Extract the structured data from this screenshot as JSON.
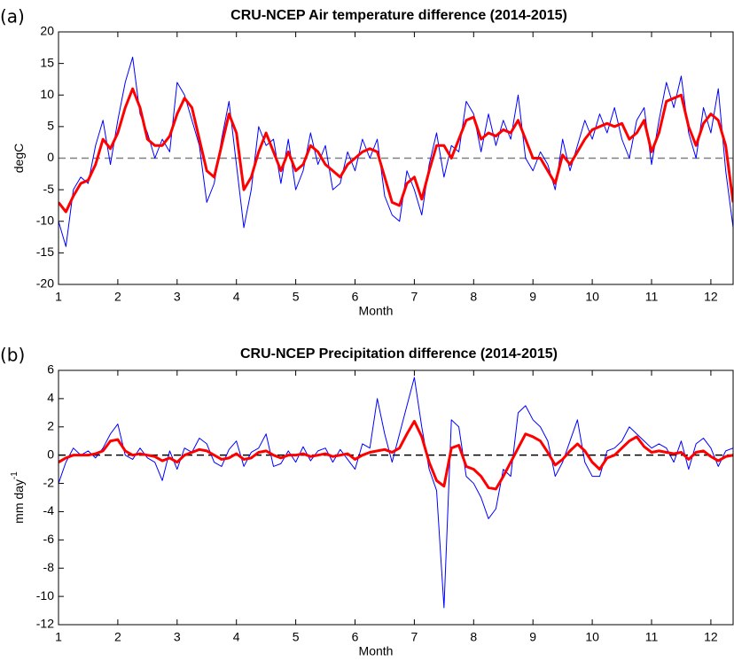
{
  "chart_data": [
    {
      "type": "line",
      "panel_label": "(a)",
      "title": "CRU-NCEP Air temperature difference (2014-2015)",
      "xlabel": "Month",
      "ylabel": "degC",
      "xlim": [
        1,
        12.375
      ],
      "xticks": [
        1,
        2,
        3,
        4,
        5,
        6,
        7,
        8,
        9,
        10,
        11,
        12
      ],
      "ylim": [
        -20,
        20
      ],
      "yticks": [
        -20,
        -15,
        -10,
        -5,
        0,
        5,
        10,
        15,
        20
      ],
      "zero_line": true,
      "zero_line_color": "#808080",
      "x": [
        1,
        1.125,
        1.25,
        1.375,
        1.5,
        1.625,
        1.75,
        1.875,
        2,
        2.125,
        2.25,
        2.375,
        2.5,
        2.625,
        2.75,
        2.875,
        3,
        3.125,
        3.25,
        3.375,
        3.5,
        3.625,
        3.75,
        3.875,
        4,
        4.125,
        4.25,
        4.375,
        4.5,
        4.625,
        4.75,
        4.875,
        5,
        5.125,
        5.25,
        5.375,
        5.5,
        5.625,
        5.75,
        5.875,
        6,
        6.125,
        6.25,
        6.375,
        6.5,
        6.625,
        6.75,
        6.875,
        7,
        7.125,
        7.25,
        7.375,
        7.5,
        7.625,
        7.75,
        7.875,
        8,
        8.125,
        8.25,
        8.375,
        8.5,
        8.625,
        8.75,
        8.875,
        9,
        9.125,
        9.25,
        9.375,
        9.5,
        9.625,
        9.75,
        9.875,
        10,
        10.125,
        10.25,
        10.375,
        10.5,
        10.625,
        10.75,
        10.875,
        11,
        11.125,
        11.25,
        11.375,
        11.5,
        11.625,
        11.75,
        11.875,
        12,
        12.125,
        12.25,
        12.375
      ],
      "series": [
        {
          "color": "#0000ff",
          "width": 1,
          "values": [
            -10,
            -14,
            -5,
            -3,
            -4,
            2,
            6,
            -1,
            6,
            12,
            16,
            7,
            4,
            0,
            3,
            1,
            12,
            10,
            6,
            2,
            -7,
            -4,
            3,
            9,
            -1,
            -11,
            -5,
            5,
            2,
            3,
            -4,
            3,
            -5,
            -2,
            4,
            -1,
            2,
            -5,
            -4,
            1,
            -2,
            3,
            0,
            3,
            -6,
            -9,
            -10,
            -2,
            -5,
            -9,
            -1,
            4,
            -3,
            2,
            1,
            9,
            7,
            1,
            7,
            2,
            6,
            3,
            10,
            0,
            -2,
            1,
            -1,
            -5,
            3,
            -2,
            2,
            6,
            3,
            7,
            4,
            8,
            3,
            0,
            6,
            8,
            -1,
            6,
            12,
            8,
            13,
            4,
            0,
            8,
            4,
            11,
            -2,
            -11
          ]
        },
        {
          "color": "#ff0000",
          "width": 3,
          "values": [
            -7,
            -8.5,
            -6,
            -4,
            -3.5,
            -1,
            3,
            1.5,
            4,
            8,
            11,
            8,
            3,
            2,
            2,
            3.5,
            7,
            9.5,
            8,
            3,
            -2,
            -3,
            2,
            7,
            4,
            -5,
            -3,
            1,
            4,
            1,
            -2,
            1,
            -2,
            -1,
            2,
            1,
            -1,
            -2,
            -3,
            -1,
            0,
            1,
            1.5,
            1,
            -3,
            -7,
            -7.5,
            -4,
            -3,
            -6.5,
            -2,
            2,
            2,
            0,
            3,
            6,
            6.5,
            3,
            4,
            3.5,
            4.5,
            4,
            6,
            3,
            0,
            0,
            -2,
            -4,
            0.5,
            -1,
            1,
            3,
            4.5,
            5,
            5.5,
            5,
            5.5,
            3,
            4,
            6,
            1,
            4,
            9,
            9.5,
            10,
            5,
            2,
            5.5,
            7,
            6,
            2,
            -7
          ]
        }
      ]
    },
    {
      "type": "line",
      "panel_label": "(b)",
      "title": "CRU-NCEP Precipitation difference (2014-2015)",
      "xlabel": "Month",
      "ylabel": "mm day",
      "ylabel_sup": "-1",
      "xlim": [
        1,
        12.375
      ],
      "xticks": [
        1,
        2,
        3,
        4,
        5,
        6,
        7,
        8,
        9,
        10,
        11,
        12
      ],
      "ylim": [
        -12,
        6
      ],
      "yticks": [
        -12,
        -10,
        -8,
        -6,
        -4,
        -2,
        0,
        2,
        4,
        6
      ],
      "zero_line": true,
      "zero_line_color": "#000000",
      "x": [
        1,
        1.125,
        1.25,
        1.375,
        1.5,
        1.625,
        1.75,
        1.875,
        2,
        2.125,
        2.25,
        2.375,
        2.5,
        2.625,
        2.75,
        2.875,
        3,
        3.125,
        3.25,
        3.375,
        3.5,
        3.625,
        3.75,
        3.875,
        4,
        4.125,
        4.25,
        4.375,
        4.5,
        4.625,
        4.75,
        4.875,
        5,
        5.125,
        5.25,
        5.375,
        5.5,
        5.625,
        5.75,
        5.875,
        6,
        6.125,
        6.25,
        6.375,
        6.5,
        6.625,
        6.75,
        6.875,
        7,
        7.125,
        7.25,
        7.375,
        7.5,
        7.625,
        7.75,
        7.875,
        8,
        8.125,
        8.25,
        8.375,
        8.5,
        8.625,
        8.75,
        8.875,
        9,
        9.125,
        9.25,
        9.375,
        9.5,
        9.625,
        9.75,
        9.875,
        10,
        10.125,
        10.25,
        10.375,
        10.5,
        10.625,
        10.75,
        10.875,
        11,
        11.125,
        11.25,
        11.375,
        11.5,
        11.625,
        11.75,
        11.875,
        12,
        12.125,
        12.25,
        12.375
      ],
      "series": [
        {
          "color": "#0000ff",
          "width": 1,
          "values": [
            -2,
            -0.5,
            0.5,
            0,
            0.3,
            -0.2,
            0.5,
            1.5,
            2.2,
            0,
            -0.3,
            0.5,
            -0.2,
            -0.5,
            -1.8,
            0.3,
            -1,
            0.5,
            0.2,
            1.2,
            0.8,
            -0.5,
            -0.8,
            0.4,
            1,
            -0.8,
            0.2,
            0.5,
            1.5,
            -0.8,
            -0.6,
            0.3,
            -0.5,
            0.6,
            -0.4,
            0.3,
            0.5,
            -0.5,
            0.4,
            -0.3,
            -1,
            0.8,
            0.5,
            4,
            1.5,
            -0.5,
            1.5,
            3.5,
            5.5,
            2,
            -1,
            -2.5,
            -10.8,
            2.5,
            2,
            -1.5,
            -2,
            -3,
            -4.5,
            -3.8,
            -1,
            -1.5,
            3,
            3.5,
            2.5,
            2,
            1,
            -1.5,
            -0.5,
            1,
            2.5,
            -0.5,
            -1.5,
            -1.5,
            0.3,
            0.5,
            1,
            2,
            1.5,
            1,
            0.5,
            0.8,
            0.5,
            -0.5,
            1,
            -1,
            0.8,
            1.2,
            0.5,
            -0.8,
            0.3,
            0.5
          ]
        },
        {
          "color": "#ff0000",
          "width": 3,
          "values": [
            -0.5,
            -0.2,
            0,
            0,
            0,
            0.1,
            0.3,
            1,
            1.1,
            0.3,
            0,
            0.1,
            0,
            -0.1,
            -0.4,
            -0.2,
            -0.5,
            0,
            0.2,
            0.4,
            0.3,
            0,
            -0.3,
            -0.2,
            0.1,
            -0.3,
            -0.2,
            0.2,
            0.3,
            0,
            -0.2,
            0,
            0,
            0.1,
            -0.1,
            0,
            0.1,
            -0.1,
            0,
            0.1,
            -0.3,
            0,
            0.2,
            0.3,
            0.4,
            0.2,
            0.5,
            1.5,
            2.4,
            1.3,
            -0.5,
            -1.8,
            -2.2,
            0.5,
            0.7,
            -0.8,
            -1,
            -1.5,
            -2.3,
            -2.4,
            -1.5,
            -0.5,
            0.5,
            1.5,
            1.3,
            1,
            0.2,
            -0.7,
            -0.3,
            0.3,
            0.8,
            0.3,
            -0.5,
            -1,
            -0.2,
            0,
            0.5,
            1,
            1.3,
            0.6,
            0.2,
            0.3,
            0.2,
            0.1,
            0.2,
            -0.3,
            0.2,
            0.3,
            -0.1,
            -0.4,
            -0.1,
            0
          ]
        }
      ]
    }
  ]
}
